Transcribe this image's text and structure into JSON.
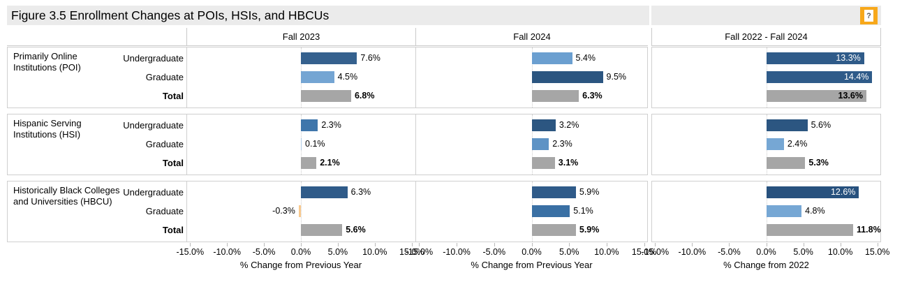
{
  "title": "Figure 3.5 Enrollment Changes at POIs, HSIs, and HBCUs",
  "help_button_label": "?",
  "colors": {
    "title_bar_bg": "#EBEBEB",
    "help_button_bg": "#F7A81B",
    "border": "#CFCFCF",
    "dark_blue": "#2F5B89",
    "darkest_blue": "#2B5580",
    "medium_blue": "#3F76AB",
    "light_blue": "#74A5D3",
    "pale_blue": "#AECBE6",
    "total_gray": "#A6A6A6",
    "negative_orange": "#F9C98E"
  },
  "chart_data": {
    "type": "bar",
    "orientation": "horizontal",
    "xlim": [
      -15.5,
      15.5
    ],
    "x_ticks": [
      -15,
      -10,
      -5,
      0,
      5,
      10,
      15
    ],
    "x_tick_labels": [
      "-15.0%",
      "-10.0%",
      "-5.0%",
      "0.0%",
      "5.0%",
      "10.0%",
      "15.0%"
    ],
    "grid": "zero-line-only",
    "columns": [
      "Fall 2023",
      "Fall 2024",
      "Fall 2022 - Fall 2024"
    ],
    "axis_labels": [
      "% Change from Previous Year",
      "% Change from Previous Year",
      "% Change from 2022"
    ],
    "row_groups": [
      {
        "name": "Primarily Online Institutions (POI)",
        "categories": [
          "Undergraduate",
          "Graduate",
          "Total"
        ],
        "panels": [
          {
            "column": "Fall 2023",
            "bars": [
              {
                "value": 7.6,
                "label": "7.6%",
                "color": "#35618E"
              },
              {
                "value": 4.5,
                "label": "4.5%",
                "color": "#74A5D3"
              },
              {
                "value": 6.8,
                "label": "6.8%",
                "color": "#A6A6A6",
                "bold": true
              }
            ]
          },
          {
            "column": "Fall 2024",
            "bars": [
              {
                "value": 5.4,
                "label": "5.4%",
                "color": "#6B9FD0"
              },
              {
                "value": 9.5,
                "label": "9.5%",
                "color": "#2B5580"
              },
              {
                "value": 6.3,
                "label": "6.3%",
                "color": "#A6A6A6",
                "bold": true
              }
            ]
          },
          {
            "column": "Fall 2022 - Fall 2024",
            "bars": [
              {
                "value": 13.3,
                "label": "13.3%",
                "color": "#2F5B89",
                "inside": true,
                "label_color": "#FFFFFF"
              },
              {
                "value": 14.4,
                "label": "14.4%",
                "color": "#2F5B89",
                "inside": true,
                "label_color": "#FFFFFF"
              },
              {
                "value": 13.6,
                "label": "13.6%",
                "color": "#A6A6A6",
                "bold": true,
                "inside": true,
                "label_color": "#000000"
              }
            ]
          }
        ]
      },
      {
        "name": "Hispanic Serving Institutions (HSI)",
        "categories": [
          "Undergraduate",
          "Graduate",
          "Total"
        ],
        "panels": [
          {
            "column": "Fall 2023",
            "bars": [
              {
                "value": 2.3,
                "label": "2.3%",
                "color": "#3F76AB"
              },
              {
                "value": 0.1,
                "label": "0.1%",
                "color": "#AECBE6"
              },
              {
                "value": 2.1,
                "label": "2.1%",
                "color": "#A6A6A6",
                "bold": true
              }
            ]
          },
          {
            "column": "Fall 2024",
            "bars": [
              {
                "value": 3.2,
                "label": "3.2%",
                "color": "#2C5681"
              },
              {
                "value": 2.3,
                "label": "2.3%",
                "color": "#5E93C5"
              },
              {
                "value": 3.1,
                "label": "3.1%",
                "color": "#A6A6A6",
                "bold": true
              }
            ]
          },
          {
            "column": "Fall 2022 - Fall 2024",
            "bars": [
              {
                "value": 5.6,
                "label": "5.6%",
                "color": "#2C5681"
              },
              {
                "value": 2.4,
                "label": "2.4%",
                "color": "#76A7D4"
              },
              {
                "value": 5.3,
                "label": "5.3%",
                "color": "#A6A6A6",
                "bold": true
              }
            ]
          }
        ]
      },
      {
        "name": "Historically Black Colleges and Universities (HBCU)",
        "categories": [
          "Undergraduate",
          "Graduate",
          "Total"
        ],
        "panels": [
          {
            "column": "Fall 2023",
            "bars": [
              {
                "value": 6.3,
                "label": "6.3%",
                "color": "#2F5B89"
              },
              {
                "value": -0.3,
                "label": "-0.3%",
                "color": "#F9C98E"
              },
              {
                "value": 5.6,
                "label": "5.6%",
                "color": "#A6A6A6",
                "bold": true
              }
            ]
          },
          {
            "column": "Fall 2024",
            "bars": [
              {
                "value": 5.9,
                "label": "5.9%",
                "color": "#2F5B89"
              },
              {
                "value": 5.1,
                "label": "5.1%",
                "color": "#3A70A4"
              },
              {
                "value": 5.9,
                "label": "5.9%",
                "color": "#A6A6A6",
                "bold": true
              }
            ]
          },
          {
            "column": "Fall 2022 - Fall 2024",
            "bars": [
              {
                "value": 12.6,
                "label": "12.6%",
                "color": "#27517E",
                "inside": true,
                "label_color": "#FFFFFF"
              },
              {
                "value": 4.8,
                "label": "4.8%",
                "color": "#76A7D4"
              },
              {
                "value": 11.8,
                "label": "11.8%",
                "color": "#A6A6A6",
                "bold": true
              }
            ]
          }
        ]
      }
    ]
  }
}
